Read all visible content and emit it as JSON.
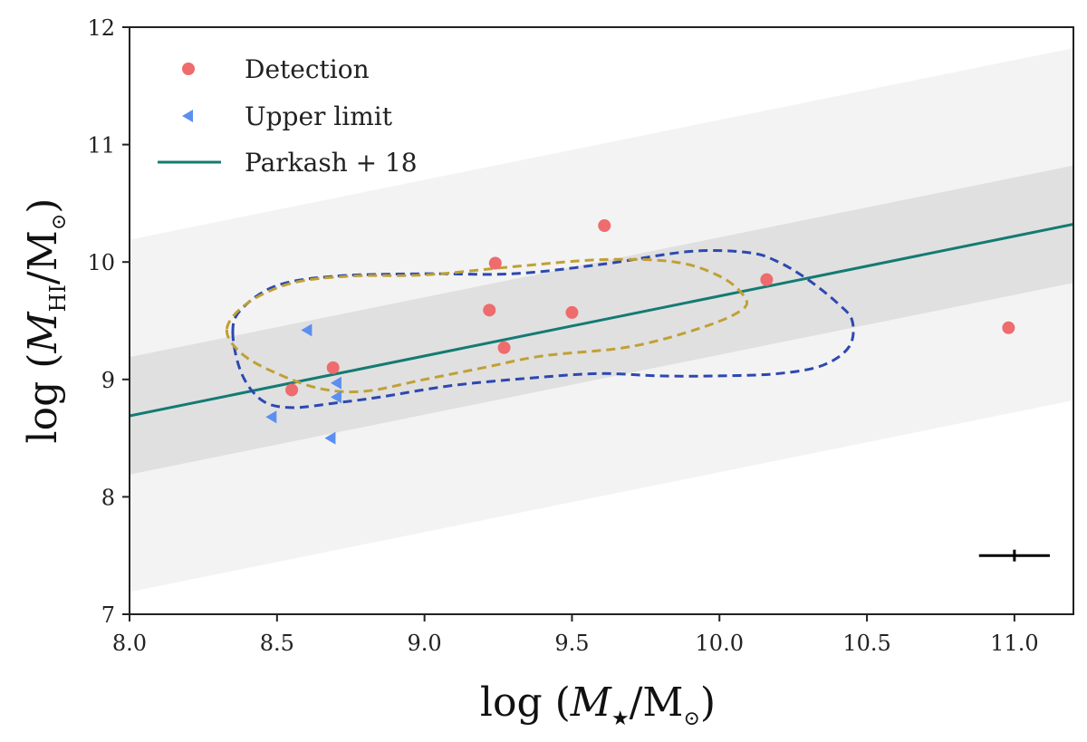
{
  "chart_data": {
    "type": "scatter",
    "title": "",
    "xlabel": "log (M★/M⊙)",
    "ylabel": "log (MHI/M⊙)",
    "xlim": [
      8.0,
      11.2
    ],
    "ylim": [
      7,
      12
    ],
    "xticks": [
      8.0,
      8.5,
      9.0,
      9.5,
      10.0,
      10.5,
      11.0
    ],
    "xtick_labels": [
      "8.0",
      "8.5",
      "9.0",
      "9.5",
      "10.0",
      "10.5",
      "11.0"
    ],
    "yticks": [
      7,
      8,
      9,
      10,
      11,
      12
    ],
    "ytick_labels": [
      "7",
      "8",
      "9",
      "10",
      "11",
      "12"
    ],
    "grid": false,
    "legend_position": "top-left",
    "legend": [
      {
        "label": "Detection",
        "kind": "marker-circle",
        "color": "#ee6b6e"
      },
      {
        "label": "Upper limit",
        "kind": "marker-left-triangle",
        "color": "#5b8ff0"
      },
      {
        "label": "Parkash + 18",
        "kind": "line",
        "color": "#137b73"
      }
    ],
    "relation": {
      "name": "Parkash + 18",
      "slope": 0.51,
      "intercept_at_8": 8.69,
      "color": "#137b73",
      "band_1sigma": 0.5,
      "band_3sigma": 1.5,
      "band_1sigma_color": "#e0e0e0",
      "band_3sigma_color": "#f3f3f3"
    },
    "detections": {
      "name": "Detection",
      "color": "#ee6b6e",
      "x": [
        8.55,
        8.69,
        9.22,
        9.24,
        9.27,
        9.5,
        9.61,
        10.16,
        10.98
      ],
      "y": [
        8.91,
        9.1,
        9.59,
        9.99,
        9.27,
        9.57,
        10.31,
        9.85,
        9.44
      ]
    },
    "upper_limits": {
      "name": "Upper limit",
      "color": "#5b8ff0",
      "x": [
        8.48,
        8.6,
        8.68,
        8.7,
        8.7
      ],
      "y": [
        8.68,
        9.42,
        8.5,
        8.85,
        8.97
      ]
    },
    "contours": [
      {
        "name": "blue-contour",
        "color": "#2d48b0",
        "points": [
          [
            8.35,
            9.4
          ],
          [
            8.38,
            9.6
          ],
          [
            8.5,
            9.8
          ],
          [
            8.7,
            9.88
          ],
          [
            9.0,
            9.9
          ],
          [
            9.3,
            9.9
          ],
          [
            9.6,
            9.98
          ],
          [
            9.9,
            10.09
          ],
          [
            10.1,
            10.08
          ],
          [
            10.2,
            10.0
          ],
          [
            10.3,
            9.85
          ],
          [
            10.4,
            9.65
          ],
          [
            10.45,
            9.5
          ],
          [
            10.44,
            9.28
          ],
          [
            10.35,
            9.12
          ],
          [
            10.2,
            9.05
          ],
          [
            10.0,
            9.03
          ],
          [
            9.8,
            9.03
          ],
          [
            9.6,
            9.05
          ],
          [
            9.4,
            9.02
          ],
          [
            9.1,
            8.95
          ],
          [
            8.85,
            8.85
          ],
          [
            8.7,
            8.8
          ],
          [
            8.55,
            8.76
          ],
          [
            8.45,
            8.82
          ],
          [
            8.38,
            9.05
          ],
          [
            8.35,
            9.4
          ]
        ]
      },
      {
        "name": "gold-contour",
        "color": "#c0a035",
        "points": [
          [
            8.33,
            9.43
          ],
          [
            8.4,
            9.65
          ],
          [
            8.55,
            9.82
          ],
          [
            8.75,
            9.88
          ],
          [
            9.0,
            9.89
          ],
          [
            9.3,
            9.96
          ],
          [
            9.6,
            10.02
          ],
          [
            9.85,
            10.0
          ],
          [
            10.0,
            9.88
          ],
          [
            10.08,
            9.72
          ],
          [
            10.08,
            9.6
          ],
          [
            9.95,
            9.45
          ],
          [
            9.7,
            9.28
          ],
          [
            9.4,
            9.2
          ],
          [
            9.2,
            9.1
          ],
          [
            9.0,
            9.0
          ],
          [
            8.8,
            8.9
          ],
          [
            8.65,
            8.92
          ],
          [
            8.5,
            9.05
          ],
          [
            8.38,
            9.22
          ],
          [
            8.33,
            9.43
          ]
        ]
      }
    ],
    "error_bar": {
      "x": 11.0,
      "y": 7.5,
      "xerr": 0.12,
      "yerr": 0.05,
      "color": "#000000"
    }
  }
}
